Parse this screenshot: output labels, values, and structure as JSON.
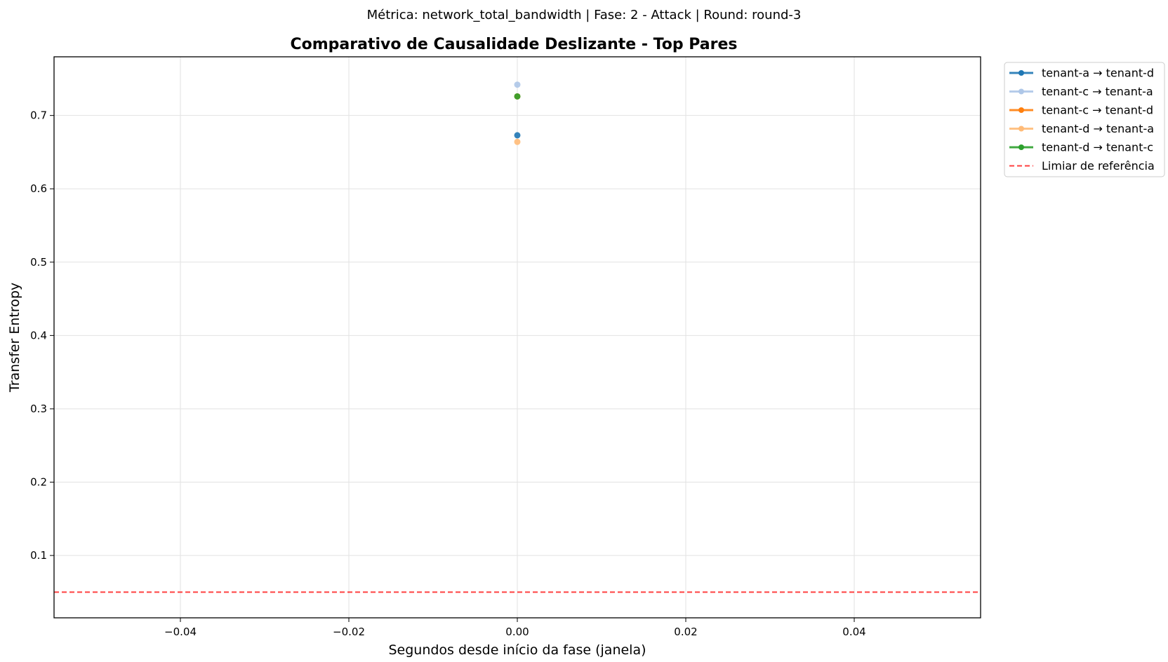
{
  "chart_data": {
    "type": "scatter",
    "suptitle": "Métrica: network_total_bandwidth | Fase: 2 - Attack | Round: round-3",
    "title": "Comparativo de Causalidade Deslizante - Top Pares",
    "xlabel": "Segundos desde início da fase (janela)",
    "ylabel": "Transfer Entropy",
    "xlim": [
      -0.055,
      0.055
    ],
    "ylim": [
      0.015,
      0.78
    ],
    "xticks": [
      -0.04,
      -0.02,
      0.0,
      0.02,
      0.04
    ],
    "xtick_labels": [
      "−0.04",
      "−0.02",
      "0.00",
      "0.02",
      "0.04"
    ],
    "yticks": [
      0.1,
      0.2,
      0.3,
      0.4,
      0.5,
      0.6,
      0.7
    ],
    "ytick_labels": [
      "0.1",
      "0.2",
      "0.3",
      "0.4",
      "0.5",
      "0.6",
      "0.7"
    ],
    "grid": true,
    "legend_position": "outside-top-right",
    "series": [
      {
        "name": "tenant-a → tenant-d",
        "color": "#1f77b4",
        "x": [
          0.0
        ],
        "y": [
          0.673
        ]
      },
      {
        "name": "tenant-c → tenant-a",
        "color": "#aec7e8",
        "x": [
          0.0
        ],
        "y": [
          0.742
        ]
      },
      {
        "name": "tenant-c → tenant-d",
        "color": "#ff7f0e",
        "x": [
          0.0
        ],
        "y": [
          0.726
        ]
      },
      {
        "name": "tenant-d → tenant-a",
        "color": "#ffbb78",
        "x": [
          0.0
        ],
        "y": [
          0.664
        ]
      },
      {
        "name": "tenant-d → tenant-c",
        "color": "#2ca02c",
        "x": [
          0.0
        ],
        "y": [
          0.726
        ]
      }
    ],
    "reference_line": {
      "name": "Limiar de referência",
      "y": 0.05,
      "color": "#ff0000",
      "style": "dashed"
    }
  }
}
